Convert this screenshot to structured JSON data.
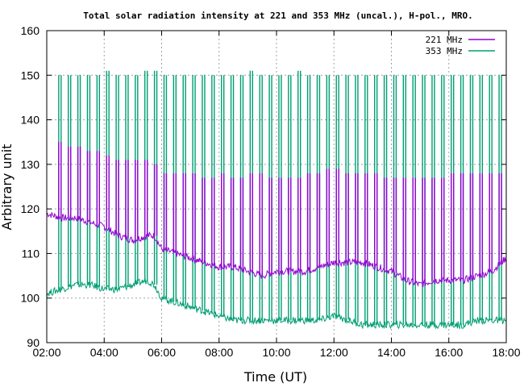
{
  "chart_data": {
    "type": "line",
    "title": "Total solar radiation intensity at 221 and 353 MHz (uncal.), H-pol., MRO.",
    "xlabel": "Time (UT)",
    "ylabel": "Arbitrary unit",
    "xlim": [
      "02:00",
      "18:00"
    ],
    "ylim": [
      90,
      160
    ],
    "x_ticks": [
      "02:00",
      "04:00",
      "06:00",
      "08:00",
      "10:00",
      "12:00",
      "14:00",
      "16:00",
      "18:00"
    ],
    "y_ticks": [
      90,
      100,
      110,
      120,
      130,
      140,
      150,
      160
    ],
    "grid": true,
    "legend_position": "top-right",
    "series": [
      {
        "name": "221 MHz",
        "color": "#9400d3",
        "baseline": {
          "x": [
            "02:00",
            "02:30",
            "03:00",
            "03:30",
            "04:00",
            "04:30",
            "05:00",
            "05:30",
            "05:45",
            "06:00",
            "06:30",
            "07:00",
            "07:30",
            "08:00",
            "08:30",
            "09:00",
            "09:30",
            "10:00",
            "10:30",
            "11:00",
            "11:30",
            "12:00",
            "12:30",
            "13:00",
            "13:30",
            "14:00",
            "14:30",
            "15:00",
            "15:30",
            "16:00",
            "16:30",
            "17:00",
            "17:30",
            "18:00"
          ],
          "y": [
            119,
            118,
            118,
            117,
            116,
            114,
            113,
            114,
            114,
            111,
            110,
            109,
            108,
            107,
            107,
            106,
            105,
            106,
            106,
            106,
            107,
            108,
            108,
            108,
            107,
            106,
            104,
            103,
            104,
            104,
            104,
            105,
            106,
            109
          ]
        },
        "calibration_peaks": {
          "x": [
            "02:25",
            "02:45",
            "03:05",
            "03:25",
            "03:45",
            "04:05",
            "04:25",
            "04:45",
            "05:05",
            "05:25",
            "05:45",
            "06:05",
            "06:25",
            "06:45",
            "07:05",
            "07:25",
            "07:45",
            "08:05",
            "08:25",
            "08:45",
            "09:05",
            "09:25",
            "09:45",
            "10:05",
            "10:25",
            "10:45",
            "11:05",
            "11:25",
            "11:45",
            "12:05",
            "12:25",
            "12:45",
            "13:05",
            "13:25",
            "13:45",
            "14:05",
            "14:25",
            "14:45",
            "15:05",
            "15:25",
            "15:45",
            "16:05",
            "16:25",
            "16:45",
            "17:05",
            "17:25",
            "17:45"
          ],
          "y": [
            135,
            134,
            134,
            133,
            133,
            132,
            131,
            131,
            131,
            131,
            130,
            128,
            128,
            128,
            128,
            127,
            127,
            128,
            127,
            127,
            128,
            128,
            127,
            127,
            127,
            127,
            128,
            128,
            129,
            129,
            128,
            128,
            128,
            128,
            127,
            127,
            127,
            127,
            127,
            127,
            127,
            128,
            128,
            128,
            128,
            128,
            128
          ]
        }
      },
      {
        "name": "353 MHz",
        "color": "#009e73",
        "baseline": {
          "x": [
            "02:00",
            "02:30",
            "03:00",
            "03:30",
            "04:00",
            "04:30",
            "05:00",
            "05:30",
            "05:45",
            "06:00",
            "06:30",
            "07:00",
            "07:30",
            "08:00",
            "08:30",
            "09:00",
            "09:30",
            "10:00",
            "10:30",
            "11:00",
            "11:30",
            "12:00",
            "12:30",
            "13:00",
            "13:30",
            "14:00",
            "14:30",
            "15:00",
            "15:30",
            "16:00",
            "16:30",
            "17:00",
            "17:30",
            "18:00"
          ],
          "y": [
            101,
            102,
            103,
            103,
            102,
            102,
            103,
            104,
            103,
            100,
            99,
            98,
            97,
            96,
            95,
            95,
            95,
            95,
            95,
            95,
            95,
            96,
            95,
            94,
            94,
            94,
            94,
            94,
            94,
            94,
            94,
            95,
            95,
            95
          ]
        },
        "calibration_peaks": {
          "x": [
            "02:25",
            "02:45",
            "03:05",
            "03:25",
            "03:45",
            "04:05",
            "04:25",
            "04:45",
            "05:05",
            "05:25",
            "05:45",
            "06:05",
            "06:25",
            "06:45",
            "07:05",
            "07:25",
            "07:45",
            "08:05",
            "08:25",
            "08:45",
            "09:05",
            "09:25",
            "09:45",
            "10:05",
            "10:25",
            "10:45",
            "11:05",
            "11:25",
            "11:45",
            "12:05",
            "12:25",
            "12:45",
            "13:05",
            "13:25",
            "13:45",
            "14:05",
            "14:25",
            "14:45",
            "15:05",
            "15:25",
            "15:45",
            "16:05",
            "16:25",
            "16:45",
            "17:05",
            "17:25",
            "17:45"
          ],
          "y": [
            150,
            150,
            150,
            150,
            150,
            151,
            150,
            150,
            150,
            151,
            151,
            150,
            150,
            150,
            150,
            150,
            150,
            150,
            150,
            150,
            151,
            150,
            150,
            150,
            150,
            151,
            150,
            150,
            150,
            150,
            150,
            150,
            150,
            150,
            150,
            150,
            150,
            150,
            150,
            150,
            150,
            150,
            150,
            150,
            150,
            150,
            150
          ]
        }
      }
    ]
  }
}
